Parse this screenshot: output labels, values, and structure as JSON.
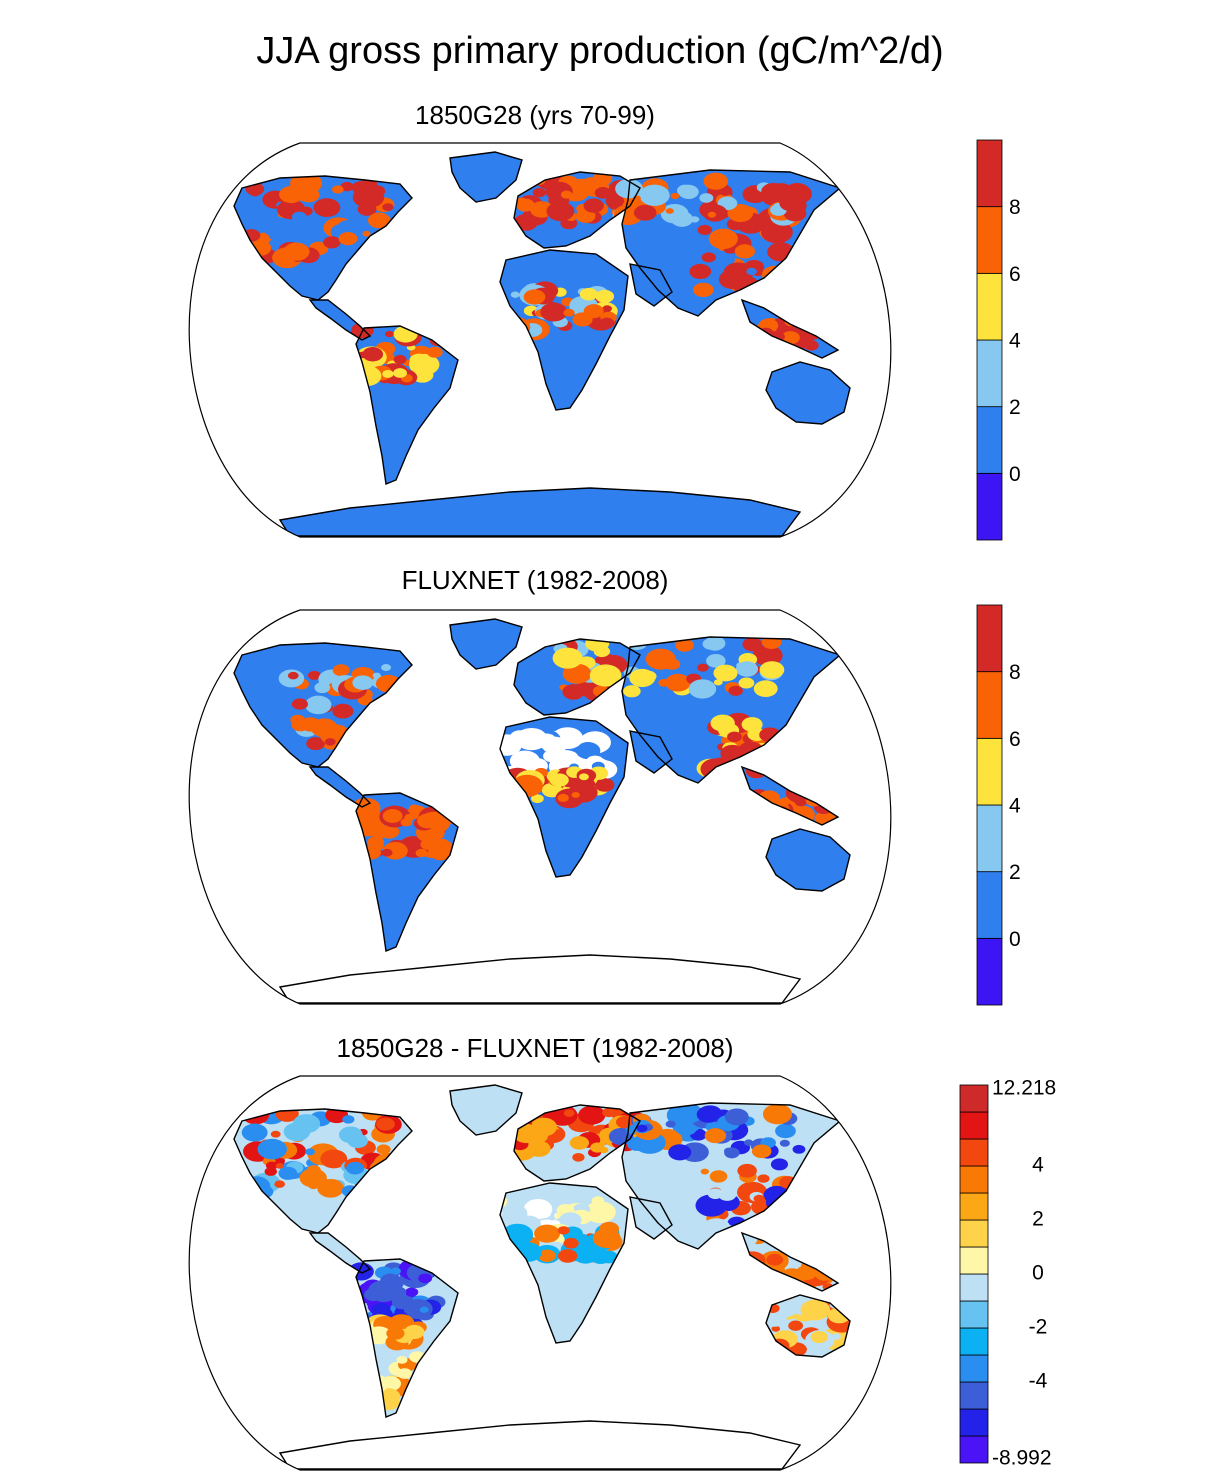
{
  "title": "JJA gross primary production (gC/m^2/d)",
  "panels": [
    {
      "id": "model",
      "title": "1850G28 (yrs 70-99)",
      "colorbar": {
        "colors": [
          "#3d15f5",
          "#2f7fef",
          "#86c8f0",
          "#fde33c",
          "#f96306",
          "#d32a27"
        ],
        "labels": [
          "0",
          "2",
          "4",
          "6",
          "8"
        ]
      }
    },
    {
      "id": "obs",
      "title": "FLUXNET (1982-2008)",
      "colorbar": {
        "colors": [
          "#3d15f5",
          "#2f7fef",
          "#86c8f0",
          "#fde33c",
          "#f96306",
          "#d32a27"
        ],
        "labels": [
          "0",
          "2",
          "4",
          "6",
          "8"
        ]
      }
    },
    {
      "id": "diff",
      "title": "1850G28 - FLUXNET (1982-2008)",
      "colorbar": {
        "colors": [
          "#4a14f6",
          "#2222e8",
          "#3c5fd8",
          "#2a8ef0",
          "#0bb1f2",
          "#66c3f1",
          "#bde0f5",
          "#fff7a8",
          "#fed34a",
          "#fca816",
          "#f97906",
          "#f2470e",
          "#e31414",
          "#cf2a2a"
        ],
        "labels": [
          "12.218",
          "4",
          "2",
          "0",
          "-2",
          "-4",
          "-8.992"
        ]
      }
    }
  ]
}
